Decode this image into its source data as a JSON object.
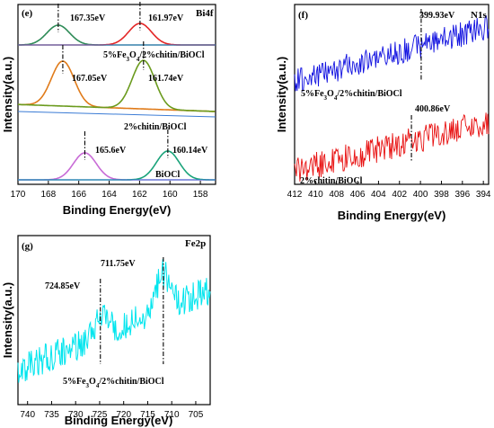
{
  "chart_data": [
    {
      "type": "line",
      "panel": "(e)",
      "tag": "Bi4f",
      "xlabel": "Binding Energy(eV)",
      "ylabel": "Intensity(a.u.)",
      "xlim": [
        170,
        157
      ],
      "xticks": [
        170,
        168,
        166,
        164,
        162,
        160,
        158
      ],
      "samples": [
        {
          "name": "5%Fe3O4/2%chitin/BiOCl",
          "label_main": "5%Fe",
          "label_sub1": "3",
          "label_mid": "O",
          "label_sub2": "4",
          "label_tail": "/2%chitin/BiOCl",
          "peaks": [
            {
              "center": 167.35,
              "label": "167.35eV",
              "color": "#2e8b57"
            },
            {
              "center": 161.97,
              "label": "161.97eV",
              "color": "#e32626"
            }
          ]
        },
        {
          "name": "2%chitin/BiOCl",
          "label": "2%chitin/BiOCl",
          "peaks": [
            {
              "center": 167.05,
              "label": "167.05eV",
              "color": "#e07b1a"
            },
            {
              "center": 161.74,
              "label": "161.74eV",
              "color": "#6b9b1e"
            }
          ]
        },
        {
          "name": "BiOCl",
          "label": "BiOCl",
          "peaks": [
            {
              "center": 165.6,
              "label": "165.6eV",
              "color": "#c86bd6"
            },
            {
              "center": 160.14,
              "label": "160.14eV",
              "color": "#1aa37a"
            }
          ]
        }
      ]
    },
    {
      "type": "line",
      "panel": "(f)",
      "tag": "N1s",
      "xlabel": "Binding Energy(eV)",
      "ylabel": "Intensity(a.u.)",
      "xlim": [
        412,
        393.5
      ],
      "xticks": [
        412,
        410,
        408,
        406,
        404,
        402,
        400,
        398,
        396,
        394
      ],
      "series": [
        {
          "name": "5%Fe3O4/2%chitin/BiOCl",
          "label_main": "5%Fe",
          "label_sub1": "3",
          "label_mid": "O",
          "label_sub2": "4",
          "label_tail": "/2%chitin/BiOCl",
          "color": "#1010e0",
          "peak": 399.93,
          "peak_label": "399.93eV"
        },
        {
          "name": "2%chitin/BiOCl",
          "label": "2%chitin/BiOCl",
          "color": "#e81010",
          "peak": 400.86,
          "peak_label": "400.86eV"
        }
      ]
    },
    {
      "type": "line",
      "panel": "(g)",
      "tag": "Fe2p",
      "xlabel": "Binding Energy(eV)",
      "ylabel": "Intensity(a.u.)",
      "xlim": [
        742,
        702
      ],
      "xticks": [
        740,
        735,
        730,
        725,
        720,
        715,
        710,
        705
      ],
      "series": [
        {
          "name": "5%Fe3O4/2%chitin/BiOCl",
          "label_main": "5%Fe",
          "label_sub1": "3",
          "label_mid": "O",
          "label_sub2": "4",
          "label_tail": "/2%chitin/BiOCl",
          "color": "#00e5ee",
          "peaks": [
            {
              "center": 724.85,
              "label": "724.85eV"
            },
            {
              "center": 711.75,
              "label": "711.75eV"
            }
          ]
        }
      ]
    }
  ]
}
